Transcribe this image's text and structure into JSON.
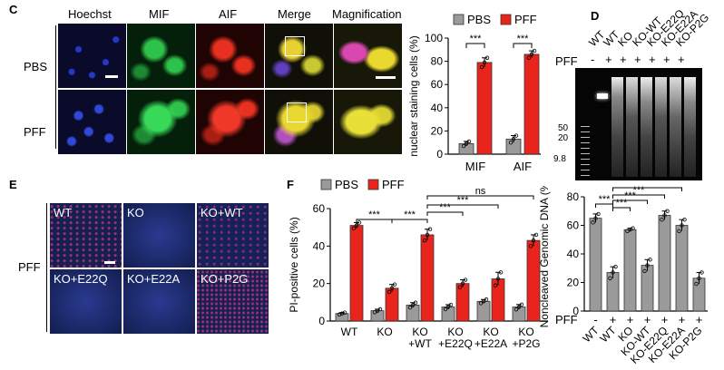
{
  "panels": {
    "C": "C",
    "D": "D",
    "E": "E",
    "F": "F"
  },
  "panel_c": {
    "columns": [
      "Hoechst",
      "MIF",
      "AIF",
      "Merge",
      "Magnification"
    ],
    "rows": [
      "PBS",
      "PFF"
    ]
  },
  "panel_e": {
    "row_label": "PFF",
    "tiles": [
      "WT",
      "KO",
      "KO+WT",
      "KO+E22Q",
      "KO+E22A",
      "KO+P2G"
    ]
  },
  "panel_d": {
    "lanes": [
      "WT",
      "WT",
      "KO",
      "KO-WT",
      "KO-E22Q",
      "KO-E22A",
      "KO-P2G"
    ],
    "pff_label": "PFF",
    "pff_signs": [
      "-",
      "+",
      "+",
      "+",
      "+",
      "+",
      "+"
    ],
    "markers": [
      "50",
      "20",
      "9.8"
    ]
  },
  "colors": {
    "pbs": "#9a9a9a",
    "pff": "#e8241c"
  },
  "chart_data": [
    {
      "id": "chart-c",
      "type": "bar",
      "ylabel": "nuclear staining cells (%)",
      "ylim": [
        0,
        100
      ],
      "yticks": [
        "0",
        "20",
        "40",
        "60",
        "80",
        "100"
      ],
      "categories": [
        "MIF",
        "AIF"
      ],
      "legend": [
        "PBS",
        "PFF"
      ],
      "series": [
        {
          "name": "PBS",
          "values": [
            9,
            13
          ],
          "errors": [
            2,
            3
          ]
        },
        {
          "name": "PFF",
          "values": [
            79,
            86
          ],
          "errors": [
            4,
            3
          ]
        }
      ],
      "significance": [
        "***",
        "***"
      ]
    },
    {
      "id": "chart-f",
      "type": "bar",
      "ylabel": "PI-positive cells (%)",
      "ylim": [
        0,
        60
      ],
      "yticks": [
        "0",
        "20",
        "40",
        "60"
      ],
      "categories": [
        [
          "WT"
        ],
        [
          "KO"
        ],
        [
          "KO",
          "+WT"
        ],
        [
          "KO",
          "+E22Q"
        ],
        [
          "KO",
          "+E22A"
        ],
        [
          "KO",
          "+P2G"
        ]
      ],
      "legend": [
        "PBS",
        "PFF"
      ],
      "series": [
        {
          "name": "PBS",
          "values": [
            4,
            5.5,
            8.5,
            7.5,
            10.5,
            7.5
          ],
          "errors": [
            0.5,
            0.8,
            1.3,
            1.2,
            1.0,
            1.3
          ]
        },
        {
          "name": "PFF",
          "values": [
            51,
            17.5,
            46,
            20,
            22.5,
            43
          ],
          "errors": [
            1.5,
            2.0,
            3.0,
            2.0,
            3.5,
            3.0
          ]
        }
      ],
      "significance": [
        "***",
        "***",
        "***",
        "***",
        "ns"
      ]
    },
    {
      "id": "chart-d",
      "type": "bar",
      "ylabel": "Noncleaved Genomic DNA (%)",
      "ylim": [
        0,
        80
      ],
      "yticks": [
        "0",
        "20",
        "40",
        "60",
        "80"
      ],
      "categories": [
        "WT",
        "WT",
        "KO",
        "KO-WT",
        "KO-E22Q",
        "KO-E22A",
        "KO-P2G"
      ],
      "pff_label": "PFF",
      "pff_signs": [
        "-",
        "+",
        "+",
        "+",
        "+",
        "+",
        "+"
      ],
      "values": [
        65,
        27,
        57,
        32,
        67,
        60,
        23
      ],
      "errors": [
        3,
        4,
        1,
        4,
        3,
        4,
        4
      ],
      "significance": [
        "***",
        "***",
        "***",
        "***",
        "***"
      ]
    }
  ]
}
